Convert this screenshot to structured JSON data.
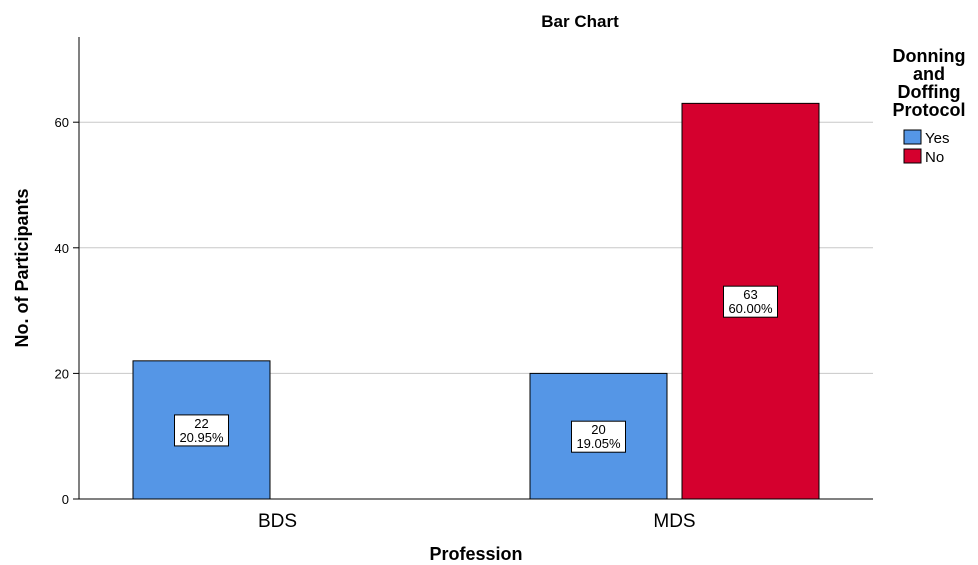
{
  "chart_data": {
    "type": "bar",
    "title": "Bar Chart",
    "xlabel": "Profession",
    "ylabel": "No. of Participants",
    "categories": [
      "BDS",
      "MDS"
    ],
    "series": [
      {
        "name": "Yes",
        "color": "#5596e6",
        "values": [
          22,
          20
        ],
        "labels": [
          [
            "22",
            "20.95%"
          ],
          [
            "20",
            "19.05%"
          ]
        ]
      },
      {
        "name": "No",
        "color": "#d5002e",
        "values": [
          null,
          63
        ],
        "labels": [
          null,
          [
            "63",
            "60.00%"
          ]
        ]
      }
    ],
    "ylim": [
      0,
      73
    ],
    "yticks": [
      0,
      20,
      40,
      60
    ],
    "grid": true,
    "legend": {
      "title_lines": [
        "Donning",
        "and",
        "Doffing",
        "Protocol"
      ],
      "placement": "right"
    }
  }
}
